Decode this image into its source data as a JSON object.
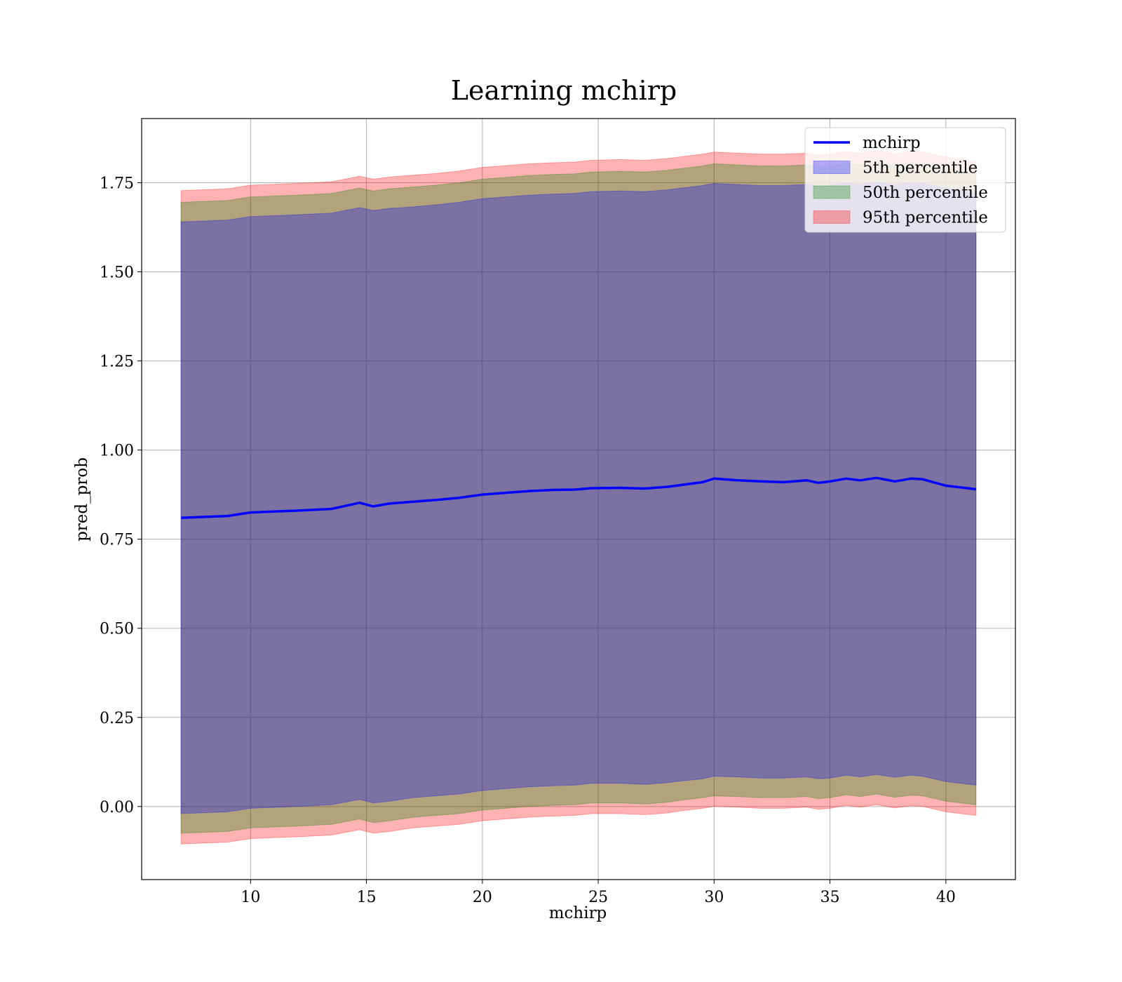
{
  "chart_data": {
    "type": "area",
    "title": "Learning mchirp",
    "xlabel": "mchirp",
    "ylabel": "pred_prob",
    "xlim": [
      5.3,
      43
    ],
    "ylim": [
      -0.205,
      1.93
    ],
    "xticks": [
      10,
      15,
      20,
      25,
      30,
      35,
      40
    ],
    "yticks": [
      0.0,
      0.25,
      0.5,
      0.75,
      1.0,
      1.25,
      1.5,
      1.75
    ],
    "ytick_labels": [
      "0.00",
      "0.25",
      "0.50",
      "0.75",
      "1.00",
      "1.25",
      "1.50",
      "1.75"
    ],
    "grid": true,
    "legend_position": "top-right",
    "x": [
      7.0,
      9.0,
      10.0,
      12.0,
      13.5,
      14.7,
      15.3,
      16.0,
      17.0,
      18.0,
      19.0,
      20.0,
      21.0,
      22.0,
      23.0,
      24.0,
      24.7,
      26.0,
      27.0,
      28.0,
      28.6,
      29.5,
      30.0,
      31.0,
      32.0,
      33.0,
      34.0,
      34.5,
      35.0,
      35.7,
      36.3,
      37.0,
      37.8,
      38.5,
      39.0,
      40.0,
      41.3
    ],
    "series": [
      {
        "name": "mchirp",
        "kind": "line",
        "color": "#0000ff",
        "values": [
          0.81,
          0.815,
          0.825,
          0.83,
          0.835,
          0.852,
          0.842,
          0.85,
          0.855,
          0.86,
          0.866,
          0.875,
          0.88,
          0.885,
          0.888,
          0.889,
          0.893,
          0.894,
          0.892,
          0.897,
          0.902,
          0.91,
          0.92,
          0.915,
          0.912,
          0.91,
          0.915,
          0.908,
          0.912,
          0.92,
          0.915,
          0.922,
          0.912,
          0.92,
          0.918,
          0.9,
          0.89
        ]
      },
      {
        "name": "5th percentile",
        "kind": "band",
        "color": "#0000ff",
        "lower": [
          -0.02,
          -0.015,
          -0.005,
          0.0,
          0.005,
          0.02,
          0.01,
          0.015,
          0.025,
          0.03,
          0.035,
          0.045,
          0.05,
          0.055,
          0.058,
          0.06,
          0.065,
          0.065,
          0.062,
          0.067,
          0.072,
          0.078,
          0.085,
          0.083,
          0.08,
          0.08,
          0.083,
          0.078,
          0.08,
          0.088,
          0.083,
          0.09,
          0.082,
          0.088,
          0.085,
          0.07,
          0.06
        ],
        "upper": [
          1.64,
          1.645,
          1.655,
          1.66,
          1.665,
          1.68,
          1.672,
          1.678,
          1.682,
          1.688,
          1.695,
          1.705,
          1.71,
          1.715,
          1.718,
          1.72,
          1.725,
          1.727,
          1.725,
          1.73,
          1.735,
          1.742,
          1.748,
          1.745,
          1.742,
          1.742,
          1.745,
          1.74,
          1.742,
          1.75,
          1.745,
          1.752,
          1.744,
          1.75,
          1.748,
          1.735,
          1.72
        ]
      },
      {
        "name": "50th percentile",
        "kind": "band",
        "color": "#008000",
        "lower": [
          -0.075,
          -0.07,
          -0.06,
          -0.055,
          -0.05,
          -0.035,
          -0.045,
          -0.04,
          -0.03,
          -0.025,
          -0.02,
          -0.01,
          -0.005,
          0.0,
          0.003,
          0.005,
          0.01,
          0.01,
          0.007,
          0.012,
          0.018,
          0.025,
          0.03,
          0.028,
          0.025,
          0.025,
          0.028,
          0.022,
          0.025,
          0.033,
          0.028,
          0.035,
          0.026,
          0.032,
          0.03,
          0.015,
          0.005
        ],
        "upper": [
          1.695,
          1.7,
          1.71,
          1.715,
          1.72,
          1.735,
          1.727,
          1.733,
          1.738,
          1.743,
          1.75,
          1.76,
          1.765,
          1.77,
          1.773,
          1.775,
          1.78,
          1.782,
          1.78,
          1.785,
          1.79,
          1.797,
          1.803,
          1.8,
          1.797,
          1.797,
          1.8,
          1.795,
          1.797,
          1.805,
          1.8,
          1.807,
          1.798,
          1.805,
          1.803,
          1.79,
          1.775
        ]
      },
      {
        "name": "95th percentile",
        "kind": "band",
        "color": "#ff0000",
        "lower": [
          -0.105,
          -0.1,
          -0.09,
          -0.085,
          -0.08,
          -0.065,
          -0.075,
          -0.07,
          -0.06,
          -0.055,
          -0.05,
          -0.04,
          -0.035,
          -0.03,
          -0.027,
          -0.025,
          -0.02,
          -0.02,
          -0.023,
          -0.018,
          -0.012,
          -0.005,
          0.0,
          -0.002,
          -0.005,
          -0.005,
          -0.002,
          -0.008,
          -0.005,
          0.003,
          -0.002,
          0.005,
          -0.004,
          0.002,
          0.0,
          -0.015,
          -0.025
        ],
        "upper": [
          1.728,
          1.733,
          1.743,
          1.748,
          1.753,
          1.768,
          1.76,
          1.766,
          1.771,
          1.776,
          1.783,
          1.793,
          1.798,
          1.803,
          1.806,
          1.808,
          1.813,
          1.815,
          1.813,
          1.818,
          1.823,
          1.83,
          1.836,
          1.833,
          1.83,
          1.83,
          1.833,
          1.828,
          1.83,
          1.838,
          1.833,
          1.84,
          1.831,
          1.838,
          1.836,
          1.823,
          1.808
        ]
      }
    ]
  }
}
